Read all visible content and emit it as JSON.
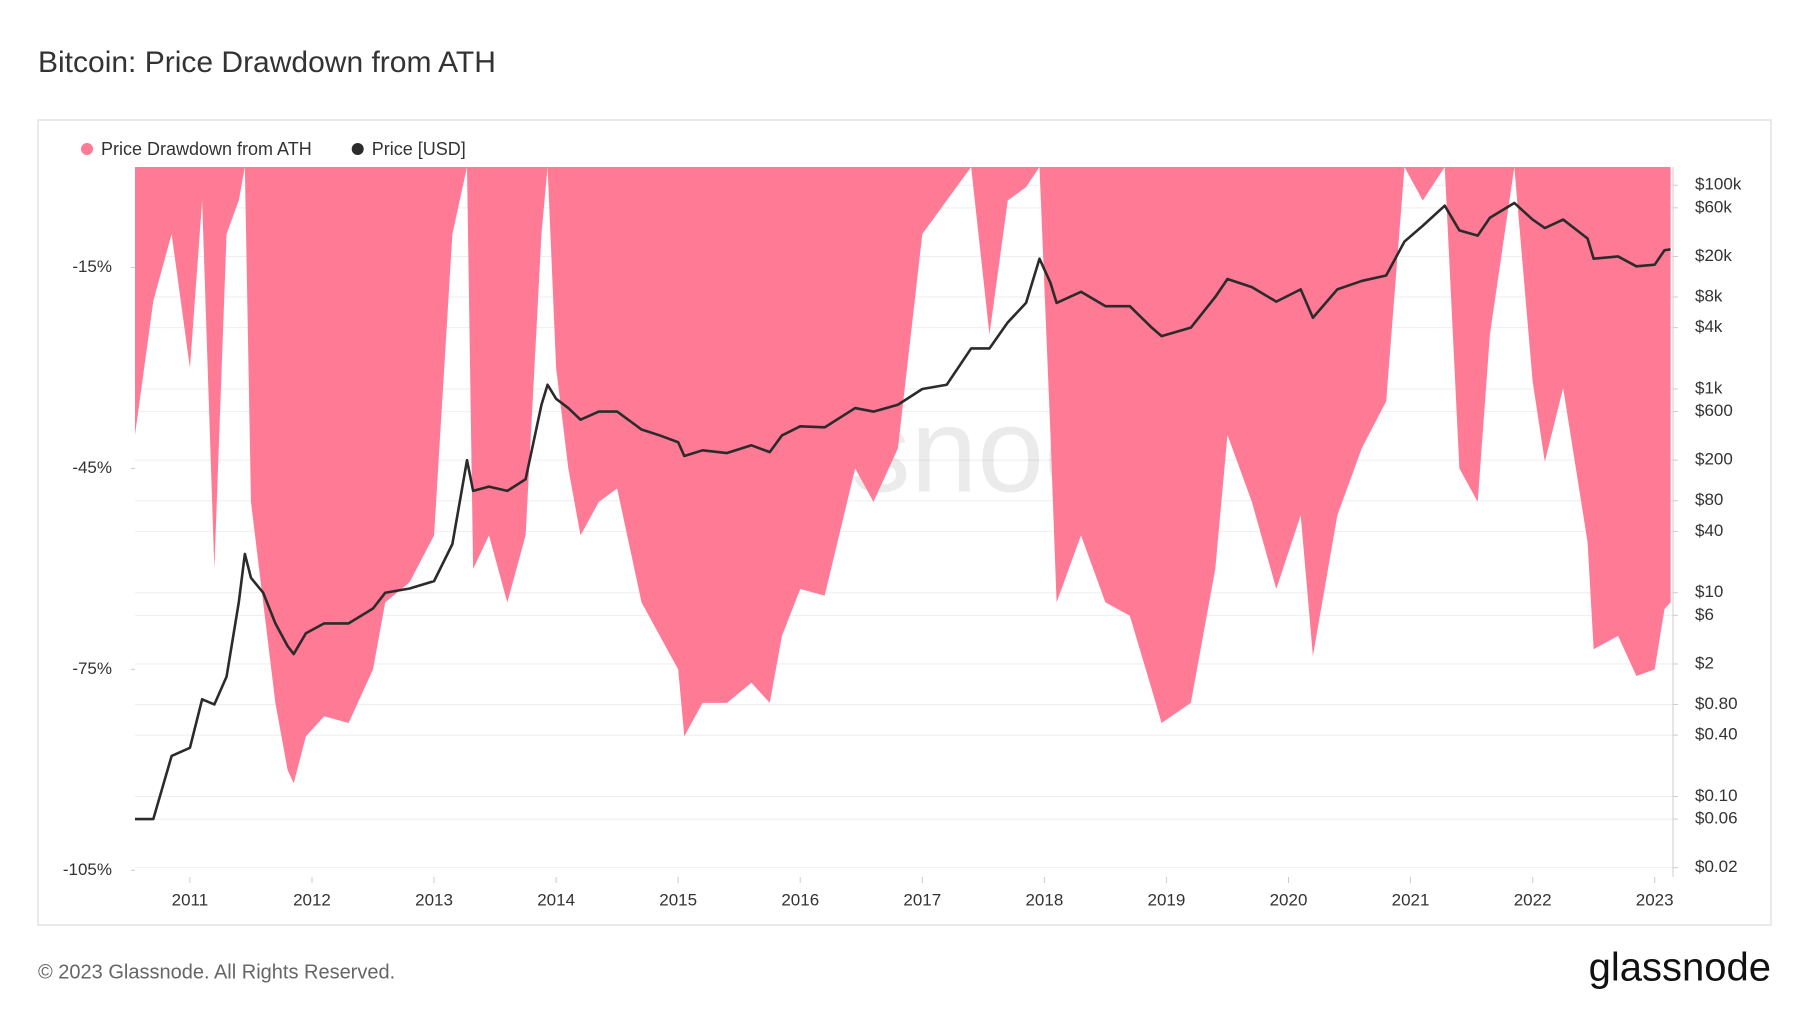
{
  "chart_data": {
    "type": "combo",
    "title": "Bitcoin: Price Drawdown from ATH",
    "watermark": "glassnode",
    "x": [
      2010.55,
      2010.7,
      2010.85,
      2011.0,
      2011.1,
      2011.2,
      2011.3,
      2011.4,
      2011.45,
      2011.5,
      2011.6,
      2011.7,
      2011.8,
      2011.85,
      2011.95,
      2012.1,
      2012.3,
      2012.5,
      2012.6,
      2012.8,
      2013.0,
      2013.15,
      2013.27,
      2013.32,
      2013.45,
      2013.6,
      2013.75,
      2013.88,
      2013.93,
      2014.0,
      2014.1,
      2014.2,
      2014.35,
      2014.5,
      2014.7,
      2014.85,
      2015.0,
      2015.05,
      2015.2,
      2015.4,
      2015.6,
      2015.75,
      2015.85,
      2016.0,
      2016.2,
      2016.45,
      2016.6,
      2016.8,
      2017.0,
      2017.2,
      2017.4,
      2017.55,
      2017.7,
      2017.85,
      2017.96,
      2018.05,
      2018.1,
      2018.3,
      2018.5,
      2018.7,
      2018.88,
      2018.96,
      2019.2,
      2019.4,
      2019.5,
      2019.7,
      2019.9,
      2020.1,
      2020.2,
      2020.4,
      2020.6,
      2020.8,
      2020.95,
      2021.1,
      2021.28,
      2021.4,
      2021.55,
      2021.65,
      2021.85,
      2022.0,
      2022.1,
      2022.25,
      2022.45,
      2022.5,
      2022.7,
      2022.85,
      2023.0,
      2023.08,
      2023.13
    ],
    "xlim": [
      2010.55,
      2023.15
    ],
    "xticks": [
      2011,
      2012,
      2013,
      2014,
      2015,
      2016,
      2017,
      2018,
      2019,
      2020,
      2021,
      2022,
      2023
    ],
    "ylim": [
      -106,
      0
    ],
    "yticks": [
      {
        "value": -15,
        "label": "-15%"
      },
      {
        "value": -45,
        "label": "-45%"
      },
      {
        "value": -75,
        "label": "-75%"
      },
      {
        "value": -105,
        "label": "-105%"
      }
    ],
    "y2lim": [
      0.0162,
      151000
    ],
    "y2scale": "log",
    "y2ticks": [
      {
        "value": 100000,
        "label": "$100k"
      },
      {
        "value": 60000,
        "label": "$60k"
      },
      {
        "value": 20000,
        "label": "$20k"
      },
      {
        "value": 8000,
        "label": "$8k"
      },
      {
        "value": 4000,
        "label": "$4k"
      },
      {
        "value": 1000,
        "label": "$1k"
      },
      {
        "value": 600,
        "label": "$600"
      },
      {
        "value": 200,
        "label": "$200"
      },
      {
        "value": 80,
        "label": "$80"
      },
      {
        "value": 40,
        "label": "$40"
      },
      {
        "value": 10,
        "label": "$10"
      },
      {
        "value": 6,
        "label": "$6"
      },
      {
        "value": 2,
        "label": "$2"
      },
      {
        "value": 0.8,
        "label": "$0.80"
      },
      {
        "value": 0.4,
        "label": "$0.40"
      },
      {
        "value": 0.1,
        "label": "$0.10"
      },
      {
        "value": 0.06,
        "label": "$0.06"
      },
      {
        "value": 0.02,
        "label": "$0.02"
      }
    ],
    "grid": true,
    "legend": "top-left",
    "series": [
      {
        "name": "Price Drawdown from ATH",
        "type": "area",
        "color": "#ff7a95",
        "values": [
          -40,
          -20,
          -10,
          -30,
          -5,
          -60,
          -10,
          -5,
          0,
          -50,
          -65,
          -80,
          -90,
          -92,
          -85,
          -82,
          -83,
          -75,
          -65,
          -62,
          -55,
          -10,
          0,
          -60,
          -55,
          -65,
          -55,
          -10,
          0,
          -30,
          -45,
          -55,
          -50,
          -48,
          -65,
          -70,
          -75,
          -85,
          -80,
          -80,
          -77,
          -80,
          -70,
          -63,
          -64,
          -45,
          -50,
          -42,
          -10,
          -5,
          0,
          -25,
          -5,
          -3,
          0,
          -40,
          -65,
          -55,
          -65,
          -67,
          -78,
          -83,
          -80,
          -60,
          -40,
          -50,
          -63,
          -52,
          -73,
          -52,
          -42,
          -35,
          0,
          -5,
          0,
          -45,
          -50,
          -25,
          0,
          -32,
          -44,
          -33,
          -56,
          -72,
          -70,
          -76,
          -75,
          -66,
          -65
        ]
      },
      {
        "name": "Price [USD]",
        "type": "line",
        "axis": "y2",
        "color": "#2b2b2b",
        "values": [
          0.06,
          0.06,
          0.25,
          0.3,
          0.9,
          0.8,
          1.5,
          8,
          24,
          14,
          10,
          5,
          3,
          2.5,
          4,
          5,
          5,
          7,
          10,
          11,
          13,
          30,
          200,
          100,
          110,
          100,
          130,
          700,
          1100,
          800,
          650,
          500,
          600,
          600,
          400,
          350,
          300,
          220,
          250,
          235,
          280,
          240,
          350,
          430,
          420,
          650,
          600,
          700,
          1000,
          1100,
          2500,
          2500,
          4500,
          7000,
          19000,
          11000,
          7000,
          9000,
          6500,
          6500,
          4000,
          3300,
          4000,
          8000,
          12000,
          10000,
          7200,
          9500,
          5000,
          9500,
          11500,
          13000,
          28000,
          40000,
          63000,
          36000,
          32000,
          48000,
          67000,
          46000,
          38000,
          46000,
          30000,
          19000,
          20000,
          16000,
          16600,
          23000,
          23500
        ]
      }
    ]
  },
  "footer": {
    "copyright": "© 2023 Glassnode. All Rights Reserved.",
    "logo": "glassnode"
  }
}
